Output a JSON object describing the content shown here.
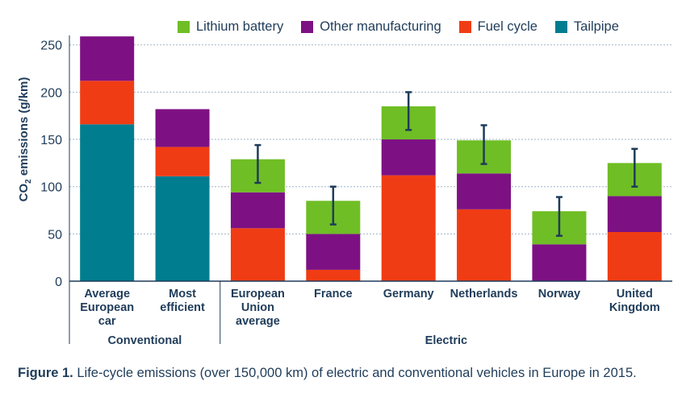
{
  "chart_data": {
    "type": "stacked-bar",
    "categories": [
      "Average European car",
      "Most efficient",
      "European Union average",
      "France",
      "Germany",
      "Netherlands",
      "Norway",
      "United Kingdom"
    ],
    "category_lines": [
      [
        "Average",
        "European",
        "car"
      ],
      [
        "Most",
        "efficient"
      ],
      [
        "European",
        "Union",
        "average"
      ],
      [
        "France"
      ],
      [
        "Germany"
      ],
      [
        "Netherlands"
      ],
      [
        "Norway"
      ],
      [
        "United",
        "Kingdom"
      ]
    ],
    "groups": [
      {
        "label": "Conventional",
        "categories": [
          "Average European car",
          "Most efficient"
        ]
      },
      {
        "label": "Electric",
        "categories": [
          "European Union average",
          "France",
          "Germany",
          "Netherlands",
          "Norway",
          "United Kingdom"
        ]
      }
    ],
    "series": [
      {
        "name": "Tailpipe",
        "color": "#007d8f",
        "values": [
          166,
          111,
          0,
          0,
          0,
          0,
          0,
          0
        ]
      },
      {
        "name": "Fuel cycle",
        "color": "#f03c14",
        "values": [
          46,
          31,
          56,
          12,
          112,
          76,
          0,
          52
        ]
      },
      {
        "name": "Other manufacturing",
        "color": "#7d1183",
        "values": [
          47,
          40,
          38,
          38,
          38,
          38,
          39,
          38
        ]
      },
      {
        "name": "Lithium battery",
        "color": "#6fbe25",
        "values": [
          0,
          0,
          35,
          35,
          35,
          35,
          35,
          35
        ]
      }
    ],
    "error_bars": [
      null,
      null,
      [
        104,
        144
      ],
      [
        60,
        100
      ],
      [
        160,
        200
      ],
      [
        124,
        165
      ],
      [
        48,
        89
      ],
      [
        100,
        140
      ]
    ],
    "legend_order": [
      "Lithium battery",
      "Other manufacturing",
      "Fuel cycle",
      "Tailpipe"
    ],
    "legend_position": "top-right",
    "ylabel_main": "CO",
    "ylabel_sub": "2",
    "ylabel_rest": " emissions (g/km)",
    "ylim": [
      0,
      260
    ],
    "yticks": [
      0,
      50,
      100,
      150,
      200,
      250
    ],
    "grid": true
  },
  "caption": {
    "label": "Figure 1.",
    "text": " Life-cycle emissions (over 150,000 km) of electric and conventional vehicles in Europe in 2015."
  }
}
